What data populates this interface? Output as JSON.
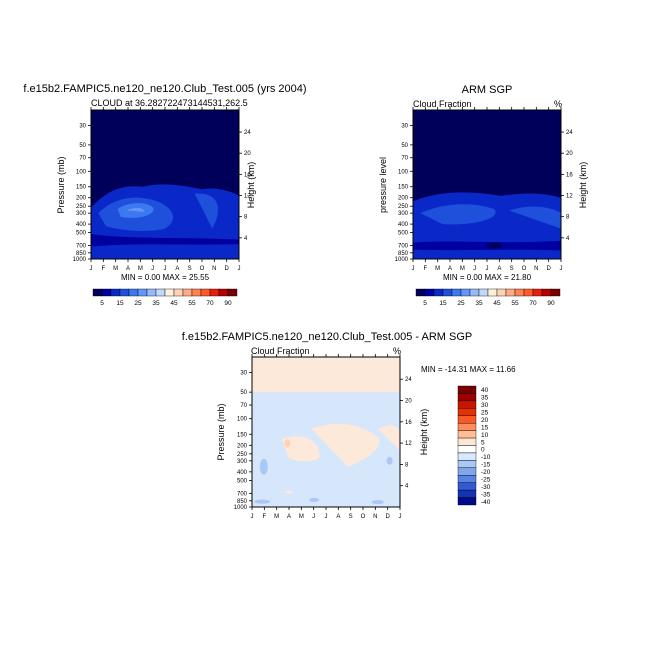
{
  "panels": {
    "model": {
      "title": "f.e15b2.FAMPIC5.ne120_ne120.Club_Test.005 (yrs 2004)",
      "subtitle_left": "CLOUD at 36.282722473144531,262.5",
      "subtitle_right": "",
      "ylabel_left": "Pressure (mb)",
      "ylabel_right": "Height (km)",
      "stats": "MIN =   0.00 MAX =  25.55"
    },
    "obs": {
      "title": "ARM SGP",
      "subtitle_left": "Cloud Fraction",
      "subtitle_right": "%",
      "ylabel_left": "pressure level",
      "ylabel_right": "Height (km)",
      "stats": "MIN =   0.00 MAX =  21.80"
    },
    "diff": {
      "title": "f.e15b2.FAMPIC5.ne120_ne120.Club_Test.005 - ARM SGP",
      "subtitle_left": "Cloud Fraction",
      "subtitle_right": "%",
      "ylabel_left": "Pressure (mb)",
      "ylabel_right": "Height (km)",
      "stats": "MIN = -14.31 MAX =  11.66"
    }
  },
  "chart_data": [
    {
      "type": "heatmap",
      "title": "f.e15b2.FAMPIC5.ne120_ne120.Club_Test.005 (yrs 2004)",
      "subtitle": "CLOUD at 36.282722473144531,262.5",
      "xlabel": "",
      "ylabel": "Pressure (mb)",
      "y2label": "Height (km)",
      "x_ticks": [
        "J",
        "F",
        "M",
        "A",
        "M",
        "J",
        "J",
        "A",
        "S",
        "O",
        "N",
        "D",
        "J"
      ],
      "y_ticks": [
        30,
        50,
        70,
        100,
        150,
        200,
        250,
        300,
        400,
        500,
        700,
        850,
        1000
      ],
      "y2_ticks": [
        24,
        20,
        16,
        12,
        8,
        4
      ],
      "ylim": [
        1000,
        20
      ],
      "y_scale": "log",
      "min": 0.0,
      "max": 25.55,
      "colorbar_labels": [
        "5",
        "15",
        "25",
        "35",
        "45",
        "55",
        "70",
        "90"
      ]
    },
    {
      "type": "heatmap",
      "title": "ARM SGP",
      "subtitle": "Cloud Fraction",
      "units": "%",
      "xlabel": "",
      "ylabel": "pressure level",
      "y2label": "Height (km)",
      "x_ticks": [
        "J",
        "F",
        "M",
        "A",
        "M",
        "J",
        "J",
        "A",
        "S",
        "O",
        "N",
        "D",
        "J"
      ],
      "y_ticks": [
        30,
        50,
        70,
        100,
        150,
        200,
        250,
        300,
        400,
        500,
        700,
        850,
        1000
      ],
      "y2_ticks": [
        24,
        20,
        16,
        12,
        8,
        4
      ],
      "ylim": [
        1000,
        20
      ],
      "y_scale": "log",
      "min": 0.0,
      "max": 21.8,
      "colorbar_labels": [
        "5",
        "15",
        "25",
        "35",
        "45",
        "55",
        "70",
        "90"
      ]
    },
    {
      "type": "heatmap",
      "title": "f.e15b2.FAMPIC5.ne120_ne120.Club_Test.005 - ARM SGP",
      "subtitle": "Cloud Fraction",
      "units": "%",
      "xlabel": "",
      "ylabel": "Pressure (mb)",
      "y2label": "Height (km)",
      "x_ticks": [
        "J",
        "F",
        "M",
        "A",
        "M",
        "J",
        "J",
        "A",
        "S",
        "O",
        "N",
        "D",
        "J"
      ],
      "y_ticks": [
        30,
        50,
        70,
        100,
        150,
        200,
        250,
        300,
        400,
        500,
        700,
        850,
        1000
      ],
      "y2_ticks": [
        24,
        20,
        16,
        12,
        8,
        4
      ],
      "ylim": [
        1000,
        20
      ],
      "y_scale": "log",
      "min": -14.31,
      "max": 11.66,
      "colorbar_labels": [
        "40",
        "35",
        "30",
        "25",
        "20",
        "15",
        "10",
        "5",
        "0",
        "-10",
        "-15",
        "-20",
        "-25",
        "-30",
        "-35",
        "-40"
      ]
    }
  ],
  "colors": {
    "field_scale": [
      "#00005a",
      "#0000a0",
      "#0a28c8",
      "#1e50dc",
      "#3c78f0",
      "#6496fa",
      "#96b9fa",
      "#c3d7fa",
      "#fff0dc",
      "#ffd2b4",
      "#ffaa82",
      "#ff8050",
      "#ff5a28",
      "#e61e0a",
      "#b40000",
      "#780000"
    ],
    "diff_scale": [
      "#780000",
      "#9b0000",
      "#c81400",
      "#e63200",
      "#f55a28",
      "#ff8c5a",
      "#ffbe96",
      "#ffe6d2",
      "#ffffff",
      "#d7e8ff",
      "#aac8f5",
      "#82a5eb",
      "#5a82e1",
      "#325ad2",
      "#1432b4",
      "#000a8c"
    ],
    "background_model": "#00005a",
    "diff_upper_band": "#fde9d9",
    "diff_mid_field": "#d6e6fb"
  }
}
